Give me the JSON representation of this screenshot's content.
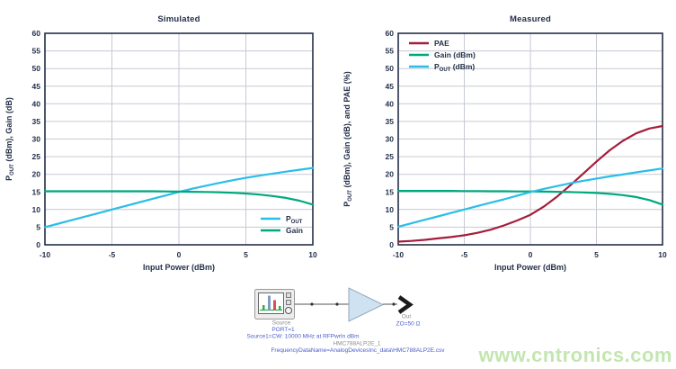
{
  "colors": {
    "axis": "#232f49",
    "grid": "#c6cad3",
    "pout": "#2bbde8",
    "gain": "#00a87e",
    "pae": "#a51c3c"
  },
  "chart_data": [
    {
      "type": "line",
      "title": "Simulated",
      "xlabel": "Input Power (dBm)",
      "ylabel": {
        "pre": "P",
        "sub": "OUT",
        "post": " (dBm), Gain (dB)"
      },
      "xlim": [
        -10,
        10
      ],
      "ylim": [
        0,
        60
      ],
      "xticks": [
        -10,
        -5,
        0,
        5,
        10
      ],
      "ytick_step": 5,
      "grid": true,
      "x": [
        -10,
        -9,
        -8,
        -7,
        -6,
        -5,
        -4,
        -3,
        -2,
        -1,
        0,
        1,
        2,
        3,
        4,
        5,
        6,
        7,
        8,
        9,
        10
      ],
      "series": [
        {
          "name": "pout",
          "color_key": "pout",
          "values": [
            5.0,
            6.0,
            7.0,
            8.0,
            9.0,
            10.0,
            11.0,
            12.0,
            13.0,
            14.0,
            15.0,
            15.9,
            16.75,
            17.55,
            18.3,
            19.0,
            19.6,
            20.2,
            20.75,
            21.3,
            21.8
          ]
        },
        {
          "name": "gain",
          "color_key": "gain",
          "values": [
            15.2,
            15.2,
            15.2,
            15.2,
            15.2,
            15.2,
            15.2,
            15.2,
            15.2,
            15.15,
            15.1,
            15.05,
            15.0,
            14.9,
            14.75,
            14.55,
            14.25,
            13.85,
            13.3,
            12.5,
            11.4
          ]
        }
      ],
      "legend": {
        "position": "bottom-right",
        "items": [
          {
            "color_key": "pout",
            "label": {
              "pre": "P",
              "sub": "OUT",
              "post": ""
            }
          },
          {
            "color_key": "gain",
            "label": {
              "pre": "Gain",
              "sub": "",
              "post": ""
            }
          }
        ]
      }
    },
    {
      "type": "line",
      "title": "Measured",
      "xlabel": "Input Power (dBm)",
      "ylabel": {
        "pre": "P",
        "sub": "OUT",
        "post": " (dBm), Gain (dB), and PAE (%)"
      },
      "xlim": [
        -10,
        10
      ],
      "ylim": [
        0,
        60
      ],
      "xticks": [
        -10,
        -5,
        0,
        5,
        10
      ],
      "ytick_step": 5,
      "grid": true,
      "x": [
        -10,
        -9,
        -8,
        -7,
        -6,
        -5,
        -4,
        -3,
        -2,
        -1,
        0,
        1,
        2,
        3,
        4,
        5,
        6,
        7,
        8,
        9,
        10
      ],
      "series": [
        {
          "name": "pae",
          "color_key": "pae",
          "values": [
            0.9,
            1.1,
            1.4,
            1.8,
            2.2,
            2.7,
            3.4,
            4.3,
            5.5,
            6.9,
            8.5,
            10.8,
            13.6,
            16.8,
            20.2,
            23.6,
            26.8,
            29.5,
            31.6,
            33.0,
            33.7
          ]
        },
        {
          "name": "gain",
          "color_key": "gain",
          "values": [
            15.3,
            15.3,
            15.3,
            15.3,
            15.3,
            15.25,
            15.25,
            15.2,
            15.2,
            15.15,
            15.15,
            15.1,
            15.05,
            14.95,
            14.85,
            14.7,
            14.45,
            14.1,
            13.55,
            12.7,
            11.4
          ]
        },
        {
          "name": "pout",
          "color_key": "pout",
          "values": [
            5.1,
            6.1,
            7.1,
            8.05,
            9.05,
            10.0,
            11.0,
            11.95,
            12.9,
            13.95,
            14.95,
            15.85,
            16.65,
            17.45,
            18.15,
            18.8,
            19.4,
            19.95,
            20.55,
            21.1,
            21.65
          ]
        }
      ],
      "legend": {
        "position": "top-left",
        "items": [
          {
            "color_key": "pae",
            "label": {
              "pre": "PAE",
              "sub": "",
              "post": ""
            }
          },
          {
            "color_key": "gain",
            "label": {
              "pre": "Gain (dBm)",
              "sub": "",
              "post": ""
            }
          },
          {
            "color_key": "pout",
            "label": {
              "pre": "P",
              "sub": "OUT",
              "post": " (dBm)"
            }
          }
        ]
      }
    }
  ],
  "schematic": {
    "source_label": "Source",
    "port_label": "PORT=1",
    "source_param": "Source1=CW: 10000 MHz at RFPwrIn dBm",
    "amp_name": "HMC788ALP2E_1",
    "amp_param": "FrequencyDataName=AnalogDevicesInc_data\\HMC788ALP2E.csv",
    "out_label": "Out",
    "out_param": "ZO=50 Ω"
  },
  "watermark": {
    "text": "www.cntronics.com"
  }
}
